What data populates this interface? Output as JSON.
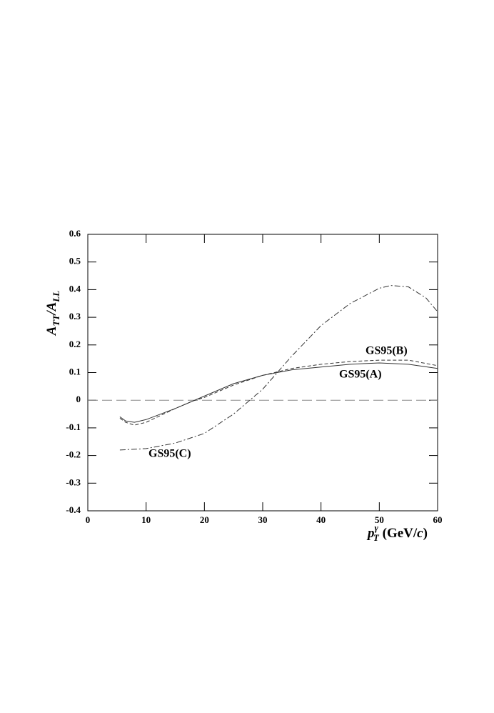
{
  "chart_data": {
    "type": "line",
    "x_label": [
      {
        "text": "p",
        "style": "italic"
      },
      {
        "text": "γ",
        "style": "sup"
      },
      {
        "text": "T",
        "style": "sub"
      },
      {
        "text": " (GeV/",
        "style": "normal"
      },
      {
        "text": "c",
        "style": "italic"
      },
      {
        "text": ")",
        "style": "normal"
      }
    ],
    "y_label": [
      {
        "text": "A",
        "style": "italic"
      },
      {
        "text": "TT",
        "style": "sub"
      },
      {
        "text": "/A",
        "style": "italic"
      },
      {
        "text": "LL",
        "style": "sub"
      }
    ],
    "xlim": [
      0,
      60
    ],
    "xticks": [
      0,
      10,
      20,
      30,
      40,
      50,
      60
    ],
    "ylim": [
      -0.4,
      0.6
    ],
    "yticks": [
      -0.4,
      -0.3,
      -0.2,
      -0.1,
      0,
      0.1,
      0.2,
      0.3,
      0.4,
      0.5,
      0.6
    ],
    "reference_line": 0,
    "series": [
      {
        "name": "GS95(A)",
        "style": "solid",
        "color": "#333333",
        "x": [
          5.5,
          6.5,
          8,
          10,
          15,
          18,
          20,
          25,
          30,
          35,
          40,
          45,
          50,
          55,
          60
        ],
        "values": [
          -0.06,
          -0.075,
          -0.08,
          -0.07,
          -0.03,
          -0.003,
          0.015,
          0.06,
          0.09,
          0.11,
          0.12,
          0.13,
          0.135,
          0.13,
          0.115
        ]
      },
      {
        "name": "GS95(B)",
        "style": "dashed",
        "color": "#333333",
        "x": [
          5.5,
          6.5,
          8,
          10,
          15,
          18,
          20,
          25,
          30,
          35,
          40,
          45,
          50,
          55,
          60
        ],
        "values": [
          -0.065,
          -0.08,
          -0.09,
          -0.08,
          -0.03,
          -0.003,
          0.01,
          0.055,
          0.09,
          0.115,
          0.13,
          0.14,
          0.145,
          0.145,
          0.125
        ]
      },
      {
        "name": "GS95(C)",
        "style": "dashdot",
        "color": "#333333",
        "x": [
          5.5,
          10,
          15,
          20,
          25,
          30,
          32.5,
          35,
          40,
          45,
          50,
          52,
          55,
          58,
          60
        ],
        "values": [
          -0.18,
          -0.175,
          -0.155,
          -0.12,
          -0.05,
          0.04,
          0.1,
          0.16,
          0.27,
          0.35,
          0.405,
          0.415,
          0.41,
          0.37,
          0.32
        ]
      }
    ]
  }
}
